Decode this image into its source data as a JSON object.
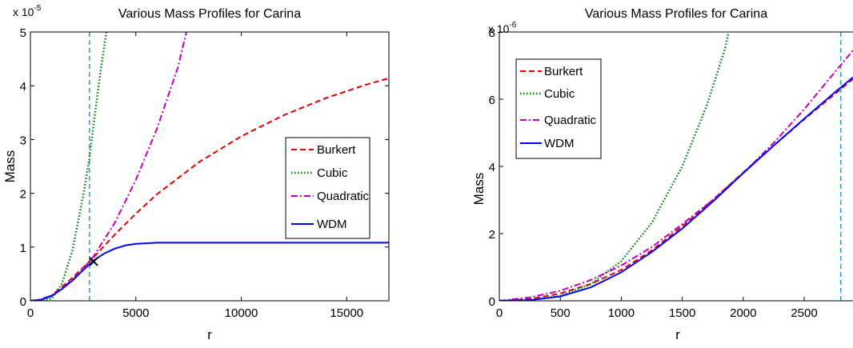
{
  "colors": {
    "burkert": "#dd0000",
    "cubic": "#008000",
    "quadratic": "#bf00bf",
    "wdm": "#0000ff",
    "marker_line": "#2aa0c0"
  },
  "chart_data": [
    {
      "type": "line",
      "title": "Various Mass Profiles for Carina",
      "xlabel": "r",
      "ylabel": "Mass",
      "exponent_base": "x 10",
      "exponent_power": "-5",
      "xlim": [
        0,
        17000
      ],
      "ylim": [
        0,
        5
      ],
      "xticks": [
        0,
        5000,
        10000,
        15000
      ],
      "xtick_labels": [
        "0",
        "5000",
        "10000",
        "15000"
      ],
      "yticks": [
        0,
        1,
        2,
        3,
        4,
        5
      ],
      "ytick_labels": [
        "0",
        "1",
        "2",
        "3",
        "4",
        "5"
      ],
      "grid": false,
      "legend_placement": "right",
      "vline_x": 2800,
      "marker": {
        "x": 3000,
        "y": 0.73,
        "symbol": "x"
      },
      "series": [
        {
          "name": "Burkert",
          "style": "dashed",
          "color_key": "burkert",
          "x": [
            0,
            500,
            1000,
            1500,
            2000,
            2500,
            2800,
            3000,
            4000,
            5000,
            6000,
            8000,
            10000,
            12000,
            14000,
            16000,
            17000
          ],
          "y": [
            0,
            0.02,
            0.1,
            0.26,
            0.43,
            0.62,
            0.73,
            0.81,
            1.23,
            1.62,
            1.98,
            2.58,
            3.06,
            3.45,
            3.77,
            4.03,
            4.14
          ]
        },
        {
          "name": "Cubic",
          "style": "dotted",
          "color_key": "cubic",
          "x": [
            0,
            500,
            1000,
            1500,
            2000,
            2500,
            2800,
            3000,
            3300,
            3600
          ],
          "y": [
            0,
            0.0,
            0.04,
            0.32,
            0.95,
            1.95,
            2.65,
            3.3,
            4.2,
            5.0
          ]
        },
        {
          "name": "Quadratic",
          "style": "dashdot",
          "color_key": "quadratic",
          "x": [
            0,
            500,
            1000,
            1500,
            2000,
            2500,
            2800,
            3000,
            4000,
            5000,
            6000,
            7000,
            7400
          ],
          "y": [
            0,
            0.03,
            0.1,
            0.23,
            0.4,
            0.6,
            0.73,
            0.83,
            1.45,
            2.25,
            3.2,
            4.35,
            5.0
          ]
        },
        {
          "name": "WDM",
          "style": "solid",
          "color_key": "wdm",
          "x": [
            0,
            500,
            1000,
            1500,
            2000,
            2500,
            2800,
            3000,
            3500,
            4000,
            4500,
            5000,
            5500,
            6000,
            7000,
            10000,
            17000
          ],
          "y": [
            0,
            0.02,
            0.09,
            0.22,
            0.38,
            0.57,
            0.68,
            0.75,
            0.88,
            0.97,
            1.03,
            1.06,
            1.07,
            1.08,
            1.08,
            1.08,
            1.08
          ]
        }
      ]
    },
    {
      "type": "line",
      "title": "Various Mass Profiles for Carina",
      "xlabel": "r",
      "ylabel": "Mass",
      "exponent_base": "x 10",
      "exponent_power": "-6",
      "xlim": [
        0,
        2900
      ],
      "ylim": [
        0,
        8
      ],
      "xticks": [
        0,
        500,
        1000,
        1500,
        2000,
        2500
      ],
      "xtick_labels": [
        "0",
        "500",
        "1000",
        "1500",
        "2000",
        "2500"
      ],
      "yticks": [
        0,
        2,
        4,
        6,
        8
      ],
      "ytick_labels": [
        "0",
        "2",
        "4",
        "6",
        "8"
      ],
      "grid": false,
      "legend_placement": "top-left",
      "vline_x": 2800,
      "series": [
        {
          "name": "Burkert",
          "style": "dashed",
          "color_key": "burkert",
          "x": [
            0,
            250,
            500,
            750,
            1000,
            1250,
            1500,
            1750,
            2000,
            2250,
            2500,
            2750,
            2900
          ],
          "y": [
            0,
            0.05,
            0.22,
            0.5,
            0.92,
            1.5,
            2.22,
            3.0,
            3.82,
            4.62,
            5.4,
            6.15,
            6.6
          ]
        },
        {
          "name": "Cubic",
          "style": "dotted",
          "color_key": "cubic",
          "x": [
            0,
            250,
            500,
            750,
            1000,
            1250,
            1500,
            1700,
            1850,
            1880
          ],
          "y": [
            0,
            0.02,
            0.15,
            0.5,
            1.18,
            2.32,
            4.0,
            5.8,
            7.5,
            8.0
          ]
        },
        {
          "name": "Quadratic",
          "style": "dashdot",
          "color_key": "quadratic",
          "x": [
            0,
            250,
            500,
            750,
            1000,
            1250,
            1500,
            1750,
            2000,
            2250,
            2500,
            2750,
            2900
          ],
          "y": [
            0,
            0.1,
            0.3,
            0.62,
            1.05,
            1.6,
            2.28,
            3.0,
            3.8,
            4.7,
            5.7,
            6.8,
            7.45
          ]
        },
        {
          "name": "WDM",
          "style": "solid",
          "color_key": "wdm",
          "x": [
            0,
            250,
            500,
            750,
            1000,
            1250,
            1500,
            1750,
            2000,
            2250,
            2500,
            2750,
            2900
          ],
          "y": [
            0,
            0.02,
            0.13,
            0.4,
            0.85,
            1.45,
            2.15,
            2.95,
            3.8,
            4.62,
            5.42,
            6.2,
            6.65
          ]
        }
      ]
    }
  ]
}
